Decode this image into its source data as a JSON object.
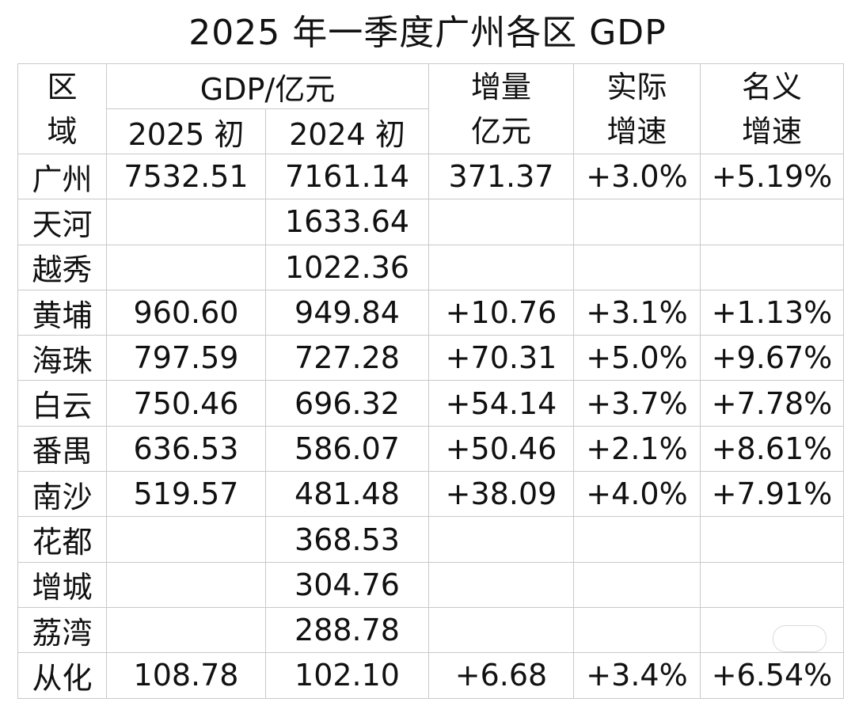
{
  "title": "2025 年一季度广州各区 GDP",
  "header": {
    "region_chars": [
      "区",
      "域"
    ],
    "gdp_group": "GDP/亿元",
    "col_2025": "2025 初",
    "col_2024": "2024 初",
    "increase_chars": [
      "增量",
      "亿元"
    ],
    "real_growth_chars": [
      "实际",
      "增速"
    ],
    "nominal_growth_chars": [
      "名义",
      "增速"
    ]
  },
  "rows": [
    {
      "region": "广州",
      "gdp_2025": "7532.51",
      "gdp_2024": "7161.14",
      "increase": "371.37",
      "real": "+3.0%",
      "nominal": "+5.19%"
    },
    {
      "region": "天河",
      "gdp_2025": "",
      "gdp_2024": "1633.64",
      "increase": "",
      "real": "",
      "nominal": ""
    },
    {
      "region": "越秀",
      "gdp_2025": "",
      "gdp_2024": "1022.36",
      "increase": "",
      "real": "",
      "nominal": ""
    },
    {
      "region": "黄埔",
      "gdp_2025": "960.60",
      "gdp_2024": "949.84",
      "increase": "+10.76",
      "real": "+3.1%",
      "nominal": "+1.13%"
    },
    {
      "region": "海珠",
      "gdp_2025": "797.59",
      "gdp_2024": "727.28",
      "increase": "+70.31",
      "real": "+5.0%",
      "nominal": "+9.67%"
    },
    {
      "region": "白云",
      "gdp_2025": "750.46",
      "gdp_2024": "696.32",
      "increase": "+54.14",
      "real": "+3.7%",
      "nominal": "+7.78%"
    },
    {
      "region": "番禺",
      "gdp_2025": "636.53",
      "gdp_2024": "586.07",
      "increase": "+50.46",
      "real": "+2.1%",
      "nominal": "+8.61%"
    },
    {
      "region": "南沙",
      "gdp_2025": "519.57",
      "gdp_2024": "481.48",
      "increase": "+38.09",
      "real": "+4.0%",
      "nominal": "+7.91%"
    },
    {
      "region": "花都",
      "gdp_2025": "",
      "gdp_2024": "368.53",
      "increase": "",
      "real": "",
      "nominal": ""
    },
    {
      "region": "增城",
      "gdp_2025": "",
      "gdp_2024": "304.76",
      "increase": "",
      "real": "",
      "nominal": ""
    },
    {
      "region": "荔湾",
      "gdp_2025": "",
      "gdp_2024": "288.78",
      "increase": "",
      "real": "",
      "nominal": ""
    },
    {
      "region": "从化",
      "gdp_2025": "108.78",
      "gdp_2024": "102.10",
      "increase": "+6.68",
      "real": "+3.4%",
      "nominal": "+6.54%"
    }
  ]
}
